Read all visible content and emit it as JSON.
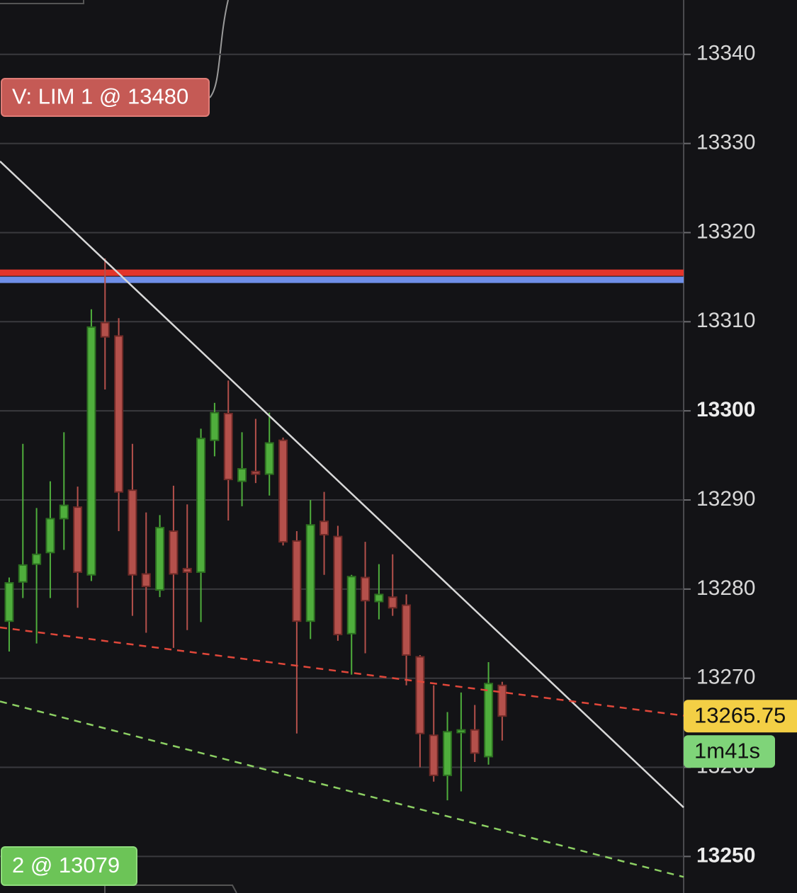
{
  "chart_data": {
    "type": "candlestick",
    "categories": [
      null,
      null,
      null,
      null,
      null,
      null,
      null,
      null,
      null,
      null,
      null,
      null,
      null,
      null,
      null,
      null,
      null,
      null,
      null,
      null,
      null,
      null,
      null,
      null,
      null,
      null,
      null,
      null,
      null,
      null,
      null,
      null,
      null,
      null,
      null,
      null,
      null
    ],
    "open": [
      13276.4,
      13280.8,
      13282.8,
      13284.1,
      13287.9,
      13289.2,
      13281.6,
      13309.9,
      13308.4,
      13291.1,
      13281.7,
      13279.9,
      13286.5,
      13282.3,
      13281.9,
      13296.7,
      13299.7,
      13292.1,
      13293.2,
      13292.9,
      13296.7,
      13285.4,
      13276.4,
      13287.6,
      13285.9,
      13275.0,
      13281.3,
      13278.6,
      13279.1,
      13278.2,
      13272.4,
      13263.6,
      13259.1,
      13263.9,
      13264.2,
      13261.2,
      13269.2
    ],
    "high": [
      13281.3,
      13296.3,
      13289.1,
      13292.1,
      13297.6,
      13291.5,
      13311.4,
      13317.1,
      13310.4,
      13296.3,
      13288.6,
      13288.3,
      13291.6,
      13289.5,
      13298.0,
      13300.9,
      13303.4,
      13297.6,
      13299.1,
      13299.8,
      13297.0,
      13286.5,
      13290.0,
      13290.9,
      13287.1,
      13281.6,
      13285.3,
      13282.8,
      13283.9,
      13279.4,
      13272.6,
      13269.2,
      13266.2,
      13268.4,
      13267.0,
      13271.8,
      13269.6
    ],
    "low": [
      13273.0,
      13279.0,
      13273.9,
      13279.0,
      13284.4,
      13277.9,
      13280.9,
      13302.4,
      13286.5,
      13277.0,
      13275.1,
      13279.1,
      13273.4,
      13275.4,
      13276.3,
      13294.9,
      13287.7,
      13289.3,
      13291.9,
      13290.5,
      13284.9,
      13263.8,
      13274.4,
      13281.6,
      13274.2,
      13270.4,
      13272.8,
      13276.6,
      13277.0,
      13269.2,
      13260.0,
      13258.4,
      13256.3,
      13257.3,
      13260.6,
      13260.3,
      13263.0
    ],
    "close": [
      13280.7,
      13282.7,
      13283.9,
      13287.9,
      13289.4,
      13281.9,
      13309.4,
      13308.3,
      13290.9,
      13281.6,
      13280.3,
      13286.9,
      13281.7,
      13281.9,
      13296.9,
      13299.8,
      13292.3,
      13293.5,
      13292.9,
      13296.4,
      13285.3,
      13276.4,
      13287.2,
      13286.1,
      13274.9,
      13281.4,
      13278.7,
      13279.4,
      13277.9,
      13272.6,
      13263.8,
      13259.1,
      13264.0,
      13264.2,
      13261.6,
      13269.4,
      13265.75
    ],
    "up_color": "#4fae3c",
    "down_color": "#b4504b",
    "xlim": [
      -0.67,
      49.25
    ],
    "ylim": [
      13245.9,
      13346.1
    ],
    "yticks": [
      13250,
      13260,
      13270,
      13280,
      13290,
      13300,
      13310,
      13320,
      13330,
      13340
    ],
    "grid": true,
    "hlines": [
      {
        "value": 13315.5,
        "color": "#e2352b"
      },
      {
        "value": 13314.7,
        "color": "#6f8fe8"
      }
    ],
    "trendlines": [
      {
        "values": [
          13328.0,
          13255.5
        ],
        "color": "#d8d8d8",
        "dash": false
      },
      {
        "values": [
          13275.7,
          13265.8
        ],
        "color": "#e0473a",
        "dash": true
      },
      {
        "values": [
          13267.4,
          13247.7
        ],
        "color": "#8ccf63",
        "dash": true
      }
    ],
    "orders": [
      {
        "label": "V: LIM 1 @ 13480",
        "color": "#c55a55"
      },
      {
        "label": "2 @ 13079",
        "color": "#6cc457"
      }
    ],
    "last_price": 13265.75,
    "last_price_color": "#f3cf45",
    "timer": "1m41s",
    "timer_color": "#7fd479"
  }
}
